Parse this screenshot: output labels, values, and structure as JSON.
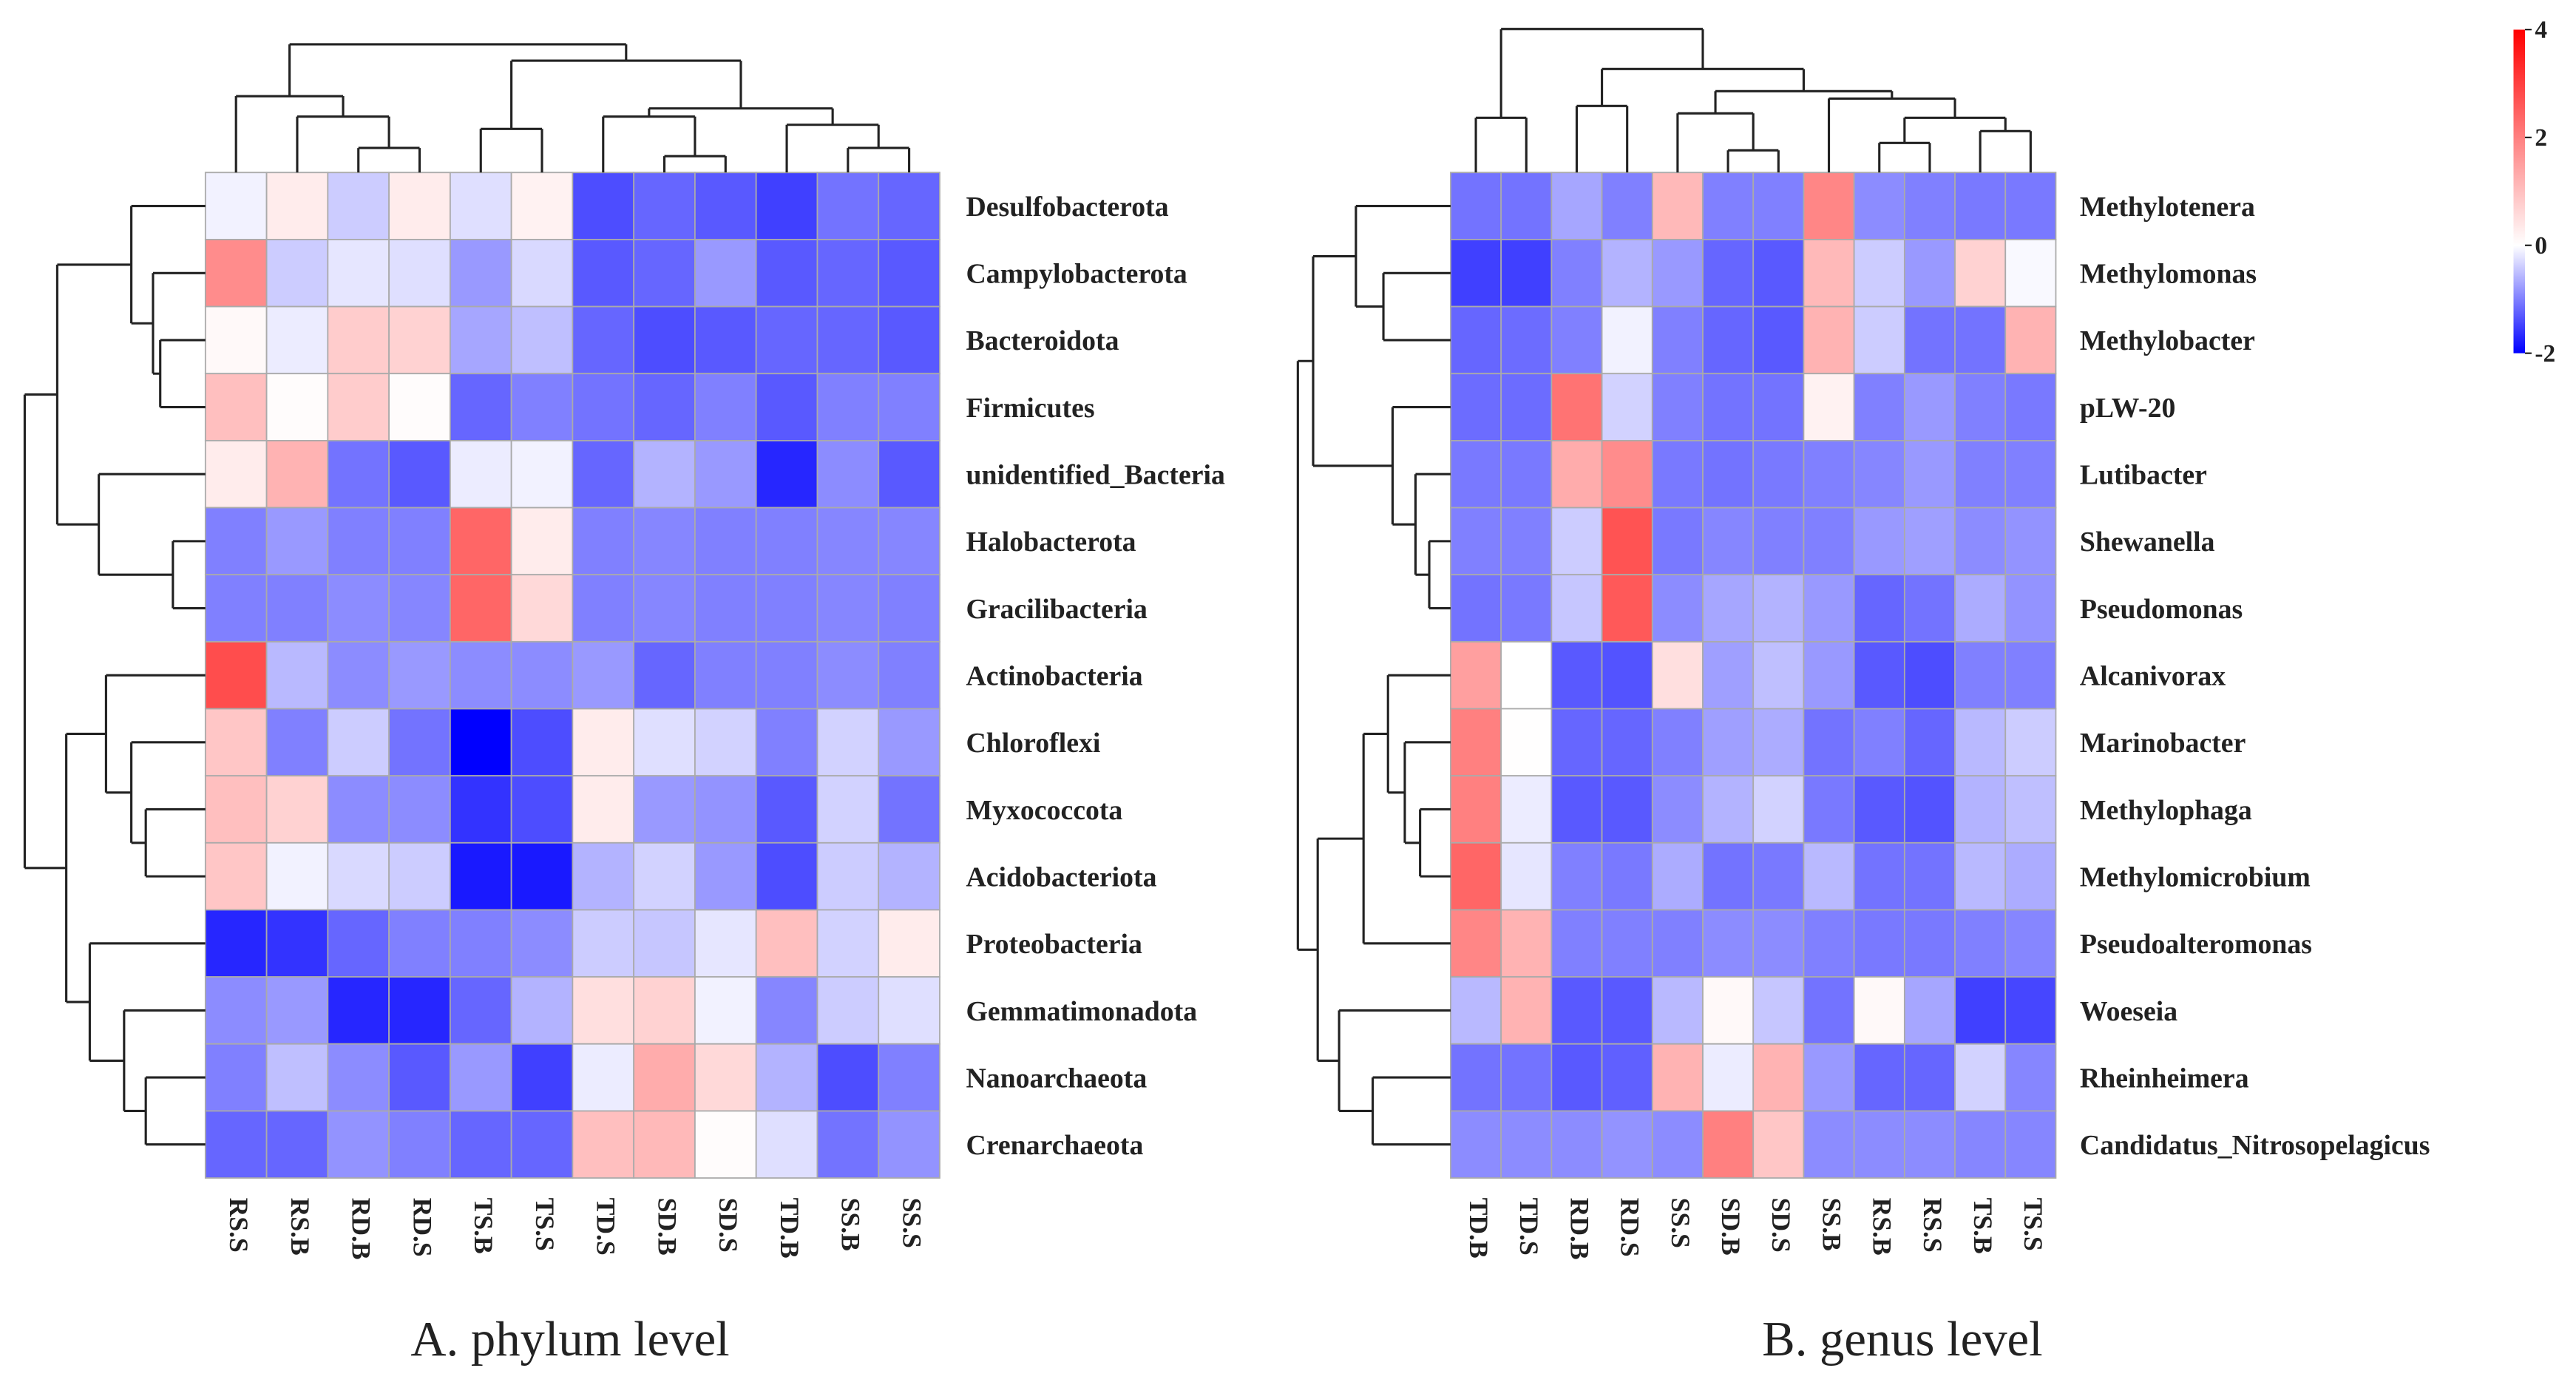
{
  "chart_data": [
    {
      "type": "heatmap",
      "title": "A. phylum level",
      "columns": [
        "RS.S",
        "RS.B",
        "RD.B",
        "RD.S",
        "TS.B",
        "TS.S",
        "TD.S",
        "SD.B",
        "SD.S",
        "TD.B",
        "SS.B",
        "SS.S"
      ],
      "rows": [
        "Desulfobacterota",
        "Campylobacterota",
        "Bacteroidota",
        "Firmicutes",
        "unidentified_Bacteria",
        "Halobacterota",
        "Gracilibacteria",
        "Actinobacteria",
        "Chloroflexi",
        "Myxococcota",
        "Acidobacteriota",
        "Proteobacteria",
        "Gemmatimonadota",
        "Nanoarchaeota",
        "Crenarchaeota"
      ],
      "values": [
        [
          -0.1,
          0.3,
          -0.4,
          0.3,
          -0.25,
          0.2,
          -1.4,
          -1.2,
          -1.3,
          -1.5,
          -1.1,
          -1.2
        ],
        [
          1.8,
          -0.4,
          -0.2,
          -0.25,
          -0.8,
          -0.3,
          -1.3,
          -1.2,
          -0.8,
          -1.3,
          -1.2,
          -1.3
        ],
        [
          0.1,
          -0.15,
          0.8,
          0.7,
          -0.7,
          -0.5,
          -1.2,
          -1.4,
          -1.3,
          -1.2,
          -1.2,
          -1.3
        ],
        [
          1.0,
          0.05,
          0.8,
          0.05,
          -1.2,
          -1.0,
          -1.1,
          -1.2,
          -1.0,
          -1.3,
          -1.0,
          -1.0
        ],
        [
          0.3,
          1.2,
          -1.1,
          -1.3,
          -0.15,
          -0.1,
          -1.2,
          -0.6,
          -0.8,
          -1.7,
          -0.9,
          -1.3
        ],
        [
          -1.0,
          -0.8,
          -1.0,
          -1.0,
          2.4,
          0.3,
          -1.0,
          -0.95,
          -1.0,
          -1.0,
          -0.95,
          -0.95
        ],
        [
          -1.0,
          -1.0,
          -0.9,
          -0.95,
          2.4,
          0.6,
          -1.0,
          -0.95,
          -1.0,
          -1.0,
          -0.95,
          -1.0
        ],
        [
          2.8,
          -0.55,
          -0.9,
          -0.8,
          -0.9,
          -0.9,
          -0.8,
          -1.2,
          -1.0,
          -1.0,
          -0.9,
          -1.0
        ],
        [
          0.9,
          -1.0,
          -0.4,
          -1.1,
          -2.0,
          -1.4,
          0.3,
          -0.25,
          -0.35,
          -1.0,
          -0.35,
          -0.8
        ],
        [
          1.0,
          0.7,
          -0.9,
          -0.9,
          -1.6,
          -1.4,
          0.3,
          -0.8,
          -0.85,
          -1.3,
          -0.35,
          -1.1
        ],
        [
          0.9,
          -0.1,
          -0.3,
          -0.4,
          -1.8,
          -1.8,
          -0.6,
          -0.35,
          -0.8,
          -1.4,
          -0.4,
          -0.6
        ],
        [
          -1.7,
          -1.6,
          -1.2,
          -1.0,
          -1.0,
          -0.9,
          -0.4,
          -0.45,
          -0.2,
          1.0,
          -0.35,
          0.3
        ],
        [
          -0.9,
          -0.8,
          -1.7,
          -1.7,
          -1.2,
          -0.6,
          0.5,
          0.7,
          -0.1,
          -0.95,
          -0.4,
          -0.25
        ],
        [
          -1.0,
          -0.5,
          -0.9,
          -1.3,
          -0.8,
          -1.5,
          -0.15,
          1.3,
          0.6,
          -0.6,
          -1.4,
          -1.0
        ],
        [
          -1.2,
          -1.2,
          -0.85,
          -1.0,
          -1.2,
          -1.2,
          1.0,
          1.1,
          0.05,
          -0.25,
          -1.1,
          -0.85
        ]
      ],
      "col_tree": {
        "h": 0.94,
        "c": [
          {
            "h": 0.56,
            "c": [
              0,
              {
                "h": 0.41,
                "c": [
                  1,
                  {
                    "h": 0.18,
                    "c": [
                      2,
                      3
                    ]
                  }
                ]
              }
            ]
          },
          {
            "h": 0.82,
            "c": [
              {
                "h": 0.32,
                "c": [
                  4,
                  5
                ]
              },
              {
                "h": 0.47,
                "c": [
                  {
                    "h": 0.41,
                    "c": [
                      6,
                      {
                        "h": 0.12,
                        "c": [
                          7,
                          8
                        ]
                      }
                    ]
                  },
                  {
                    "h": 0.35,
                    "c": [
                      9,
                      {
                        "h": 0.18,
                        "c": [
                          10,
                          11
                        ]
                      }
                    ]
                  }
                ]
              }
            ]
          }
        ]
      },
      "row_tree": {
        "h": 1.0,
        "c": [
          {
            "h": 0.82,
            "c": [
              {
                "h": 0.41,
                "c": [
                  0,
                  {
                    "h": 0.29,
                    "c": [
                      1,
                      {
                        "h": 0.25,
                        "c": [
                          2,
                          3
                        ]
                      }
                    ]
                  }
                ]
              },
              {
                "h": 0.59,
                "c": [
                  4,
                  {
                    "h": 0.18,
                    "c": [
                      5,
                      6
                    ]
                  }
                ]
              }
            ]
          },
          {
            "h": 0.77,
            "c": [
              {
                "h": 0.55,
                "c": [
                  7,
                  {
                    "h": 0.41,
                    "c": [
                      8,
                      {
                        "h": 0.33,
                        "c": [
                          9,
                          10
                        ]
                      }
                    ]
                  }
                ]
              },
              {
                "h": 0.64,
                "c": [
                  11,
                  {
                    "h": 0.45,
                    "c": [
                      12,
                      {
                        "h": 0.33,
                        "c": [
                          13,
                          14
                        ]
                      }
                    ]
                  }
                ]
              }
            ]
          }
        ]
      }
    },
    {
      "type": "heatmap",
      "title": "B. genus level",
      "columns": [
        "TD.B",
        "TD.S",
        "RD.B",
        "RD.S",
        "SS.S",
        "SD.B",
        "SD.S",
        "SS.B",
        "RS.B",
        "RS.S",
        "TS.B",
        "TS.S"
      ],
      "rows": [
        "Methylotenera",
        "Methylomonas",
        "Methylobacter",
        "pLW-20",
        "Lutibacter",
        "Shewanella",
        "Pseudomonas",
        "Alcanivorax",
        "Marinobacter",
        "Methylophaga",
        "Methylomicrobium",
        "Pseudoalteromonas",
        "Woeseia",
        "Rheinheimera",
        "Candidatus_Nitrosopelagicus"
      ],
      "values": [
        [
          -1.1,
          -1.1,
          -0.7,
          -1.0,
          1.1,
          -1.0,
          -1.0,
          1.9,
          -0.9,
          -1.0,
          -1.05,
          -1.05
        ],
        [
          -1.5,
          -1.5,
          -1.0,
          -0.6,
          -0.8,
          -1.2,
          -1.3,
          1.1,
          -0.4,
          -0.8,
          0.7,
          -0.05
        ],
        [
          -1.2,
          -1.15,
          -1.0,
          -0.1,
          -1.0,
          -1.2,
          -1.3,
          1.2,
          -0.4,
          -1.1,
          -1.1,
          1.2
        ],
        [
          -1.15,
          -1.15,
          2.2,
          -0.35,
          -1.0,
          -1.1,
          -1.1,
          0.2,
          -1.0,
          -0.8,
          -1.0,
          -1.05
        ],
        [
          -1.05,
          -1.05,
          1.3,
          1.8,
          -1.05,
          -1.1,
          -1.05,
          -1.0,
          -0.95,
          -0.8,
          -1.0,
          -1.0
        ],
        [
          -1.0,
          -1.0,
          -0.4,
          2.7,
          -1.05,
          -0.95,
          -1.0,
          -1.0,
          -0.8,
          -0.75,
          -0.9,
          -0.85
        ],
        [
          -1.1,
          -1.05,
          -0.45,
          2.6,
          -0.9,
          -0.7,
          -0.6,
          -0.8,
          -1.2,
          -1.1,
          -0.65,
          -0.85
        ],
        [
          1.5,
          0.0,
          -1.3,
          -1.35,
          0.5,
          -0.75,
          -0.5,
          -0.8,
          -1.3,
          -1.4,
          -1.0,
          -1.0
        ],
        [
          2.0,
          0.02,
          -1.2,
          -1.2,
          -1.0,
          -0.75,
          -0.65,
          -1.1,
          -1.0,
          -1.2,
          -0.55,
          -0.4
        ],
        [
          2.0,
          -0.15,
          -1.3,
          -1.3,
          -0.9,
          -0.6,
          -0.35,
          -1.05,
          -1.3,
          -1.35,
          -0.6,
          -0.5
        ],
        [
          2.4,
          -0.2,
          -1.0,
          -1.05,
          -0.65,
          -1.1,
          -1.05,
          -0.55,
          -1.1,
          -1.1,
          -0.55,
          -0.65
        ],
        [
          1.9,
          1.2,
          -1.0,
          -1.0,
          -1.0,
          -0.9,
          -0.9,
          -1.0,
          -1.05,
          -1.05,
          -1.0,
          -0.95
        ],
        [
          -0.55,
          1.2,
          -1.3,
          -1.3,
          -0.55,
          0.1,
          -0.45,
          -1.1,
          0.1,
          -0.7,
          -1.5,
          -1.45
        ],
        [
          -1.1,
          -1.1,
          -1.3,
          -1.25,
          1.2,
          -0.15,
          1.2,
          -0.8,
          -1.2,
          -1.2,
          -0.35,
          -0.95
        ],
        [
          -0.9,
          -0.9,
          -0.9,
          -0.85,
          -0.9,
          2.0,
          0.9,
          -0.9,
          -0.9,
          -0.9,
          -0.95,
          -0.95
        ]
      ],
      "col_tree": {
        "h": 0.97,
        "c": [
          {
            "h": 0.37,
            "c": [
              0,
              1
            ]
          },
          {
            "h": 0.7,
            "c": [
              {
                "h": 0.45,
                "c": [
                  2,
                  3
                ]
              },
              {
                "h": 0.55,
                "c": [
                  {
                    "h": 0.4,
                    "c": [
                      4,
                      {
                        "h": 0.15,
                        "c": [
                          5,
                          6
                        ]
                      }
                    ]
                  },
                  {
                    "h": 0.5,
                    "c": [
                      7,
                      {
                        "h": 0.37,
                        "c": [
                          {
                            "h": 0.2,
                            "c": [
                              8,
                              9
                            ]
                          },
                          {
                            "h": 0.28,
                            "c": [
                              10,
                              11
                            ]
                          }
                        ]
                      }
                    ]
                  }
                ]
              }
            ]
          }
        ]
      },
      "row_tree": {
        "h": 1.0,
        "c": [
          {
            "h": 0.9,
            "c": [
              {
                "h": 0.62,
                "c": [
                  0,
                  {
                    "h": 0.44,
                    "c": [
                      1,
                      2
                    ]
                  }
                ]
              },
              {
                "h": 0.38,
                "c": [
                  3,
                  {
                    "h": 0.23,
                    "c": [
                      4,
                      {
                        "h": 0.14,
                        "c": [
                          5,
                          6
                        ]
                      }
                    ]
                  }
                ]
              }
            ]
          },
          {
            "h": 0.87,
            "c": [
              {
                "h": 0.57,
                "c": [
                  {
                    "h": 0.41,
                    "c": [
                      7,
                      {
                        "h": 0.3,
                        "c": [
                          8,
                          {
                            "h": 0.2,
                            "c": [
                              9,
                              10
                            ]
                          }
                        ]
                      }
                    ]
                  },
                  11
                ]
              },
              {
                "h": 0.73,
                "c": [
                  12,
                  {
                    "h": 0.51,
                    "c": [
                      13,
                      14
                    ]
                  }
                ]
              }
            ]
          }
        ]
      }
    }
  ],
  "colorbar": {
    "min": -2,
    "max": 4,
    "ticks": [
      "4",
      "2",
      "0",
      "-2"
    ],
    "tick_values": [
      4,
      2,
      0,
      -2
    ],
    "low_color": "#0000ff",
    "mid_color": "#ffffff",
    "high_color": "#ff0000"
  }
}
